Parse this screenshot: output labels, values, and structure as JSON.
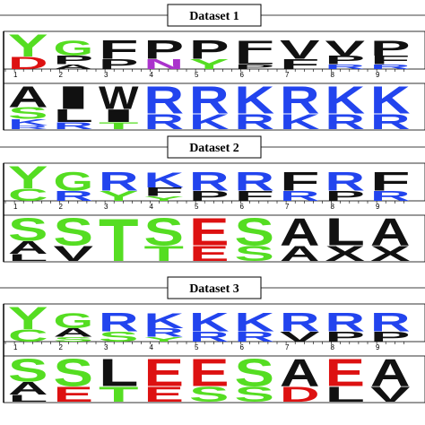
{
  "colors": {
    "Y": "#55dd22",
    "G": "#55dd22",
    "S": "#55dd22",
    "T": "#55dd22",
    "C": "#55dd22",
    "K": "#2244ee",
    "R": "#2244ee",
    "H": "#2244ee",
    "D": "#dd1111",
    "E": "#dd1111",
    "N": "#aa33cc",
    "Q": "#aa33cc",
    "A": "#111111",
    "L": "#111111",
    "V": "#111111",
    "I": "#111111",
    "F": "#111111",
    "P": "#111111",
    "W": "#111111",
    "M": "#111111",
    "X": "#111111"
  },
  "datasets": [
    {
      "title": "Dataset 1",
      "positions": [
        "1",
        "2",
        "3",
        "4",
        "5",
        "6",
        "7",
        "8",
        "9"
      ],
      "enriched": [
        [
          "Y",
          "D"
        ],
        [
          "G",
          "P",
          "A"
        ],
        [
          "F",
          "P"
        ],
        [
          "P",
          "N"
        ],
        [
          "P",
          "Y"
        ],
        [
          "F",
          "L",
          "P"
        ],
        [
          "V",
          "F"
        ],
        [
          "V",
          "P",
          "R"
        ],
        [
          "P",
          "F",
          "R"
        ]
      ],
      "depleted": [
        [
          "A",
          "S",
          "K",
          "R"
        ],
        [
          "I",
          "L",
          "R"
        ],
        [
          "W",
          "I",
          "T"
        ],
        [
          "R",
          "R"
        ],
        [
          "R",
          "K"
        ],
        [
          "K",
          "R"
        ],
        [
          "R",
          "K"
        ],
        [
          "K",
          "R"
        ],
        [
          "K",
          "R"
        ]
      ]
    },
    {
      "title": "Dataset 2",
      "positions": [
        "1",
        "2",
        "3",
        "4",
        "5",
        "6",
        "7",
        "8",
        "9"
      ],
      "enriched": [
        [
          "Y",
          "C"
        ],
        [
          "G",
          "R"
        ],
        [
          "R",
          "Y"
        ],
        [
          "K",
          "F",
          "Y"
        ],
        [
          "R",
          "P"
        ],
        [
          "R",
          "F"
        ],
        [
          "F",
          "R"
        ],
        [
          "R",
          "P"
        ],
        [
          "F",
          "R"
        ]
      ],
      "depleted": [
        [
          "S",
          "A",
          "L"
        ],
        [
          "S",
          "V"
        ],
        [
          "T"
        ],
        [
          "S",
          "T"
        ],
        [
          "E",
          "E"
        ],
        [
          "S",
          "S"
        ],
        [
          "A",
          "A"
        ],
        [
          "L",
          "X"
        ],
        [
          "A",
          "X"
        ]
      ]
    },
    {
      "title": "Dataset 3",
      "positions": [
        "1",
        "2",
        "3",
        "4",
        "5",
        "6",
        "7",
        "8",
        "9"
      ],
      "enriched": [
        [
          "Y",
          "C"
        ],
        [
          "G",
          "A",
          "S"
        ],
        [
          "R",
          "S"
        ],
        [
          "K",
          "R",
          "Y"
        ],
        [
          "K",
          "R"
        ],
        [
          "K",
          "R"
        ],
        [
          "R",
          "V"
        ],
        [
          "R",
          "P"
        ],
        [
          "R",
          "P"
        ]
      ],
      "depleted": [
        [
          "S",
          "A",
          "L"
        ],
        [
          "S",
          "E"
        ],
        [
          "L",
          "T"
        ],
        [
          "E",
          "E"
        ],
        [
          "E",
          "S"
        ],
        [
          "S",
          "S"
        ],
        [
          "A",
          "D"
        ],
        [
          "E",
          "L"
        ],
        [
          "A",
          "V"
        ]
      ]
    }
  ]
}
